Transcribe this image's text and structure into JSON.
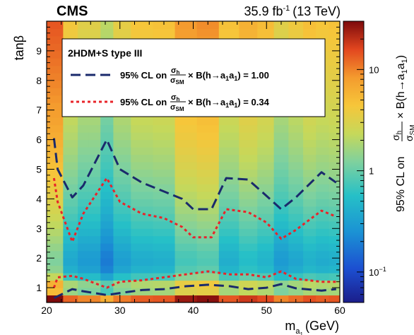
{
  "chart_data": {
    "type": "heatmap",
    "experiment": "CMS",
    "lumi_label": "35.9 fb",
    "lumi_sup": "-1",
    "lumi_energy": "(13 TeV)",
    "xlabel_main": "m",
    "xlabel_sub": "a",
    "xlabel_sub2": "1",
    "xlabel_unit": "(GeV)",
    "ylabel": "tanβ",
    "xlim": [
      20,
      60
    ],
    "ylim": [
      0.5,
      10
    ],
    "x_ticks": [
      "20",
      "30",
      "40",
      "50",
      "60"
    ],
    "y_ticks": [
      "1",
      "2",
      "3",
      "4",
      "5",
      "6",
      "7",
      "8",
      "9"
    ],
    "z_scale": "log",
    "zlim": [
      0.05,
      30
    ],
    "z_ticks": [
      "10",
      "1",
      "10"
    ],
    "z_tick_sup": [
      "",
      "",
      "−1"
    ],
    "zlabel_prefix": "95% CL on",
    "zlabel_num": "σ",
    "zlabel_num_sub": "h",
    "zlabel_den": "σ",
    "zlabel_den_sub": "SM",
    "zlabel_suffix": "× B(h→a",
    "zlabel_a_sub": "1",
    "zlabel_a2": "a",
    "zlabel_end": ")",
    "legend": {
      "title": "2HDM+S type III",
      "entries": [
        {
          "text_pre": "95% CL on",
          "num": "σ",
          "num_sub": "h",
          "den": "σ",
          "den_sub": "SM",
          "text_post": "× B(h→a",
          "sub1": "1",
          "mid": "a",
          "sub2": "1",
          "end": ") = 1.00",
          "color": "#1a2a6c",
          "style": "dashed"
        },
        {
          "text_pre": "95% CL on",
          "num": "σ",
          "num_sub": "h",
          "den": "σ",
          "den_sub": "SM",
          "text_post": "× B(h→a",
          "sub1": "1",
          "mid": "a",
          "sub2": "1",
          "end": ") = 0.34",
          "color": "#e8242a",
          "style": "dotted"
        }
      ]
    },
    "mass_bins": [
      21,
      23.5,
      25,
      26.5,
      28.2,
      30,
      33,
      36,
      39,
      42,
      45,
      47.5,
      50,
      52,
      54,
      56,
      57.5,
      59.5
    ],
    "column_scale": [
      3.0,
      0.9,
      0.7,
      0.7,
      0.45,
      0.75,
      0.95,
      1.0,
      1.8,
      2.0,
      1.0,
      1.3,
      1.1,
      0.7,
      0.85,
      1.05,
      0.95,
      1.0
    ],
    "series": [
      {
        "name": "1.00",
        "color": "#1a2a6c",
        "upper": [
          [
            21,
            6.05
          ],
          [
            21.5,
            5.0
          ],
          [
            23.5,
            4.05
          ],
          [
            25,
            4.45
          ],
          [
            28.2,
            6.0
          ],
          [
            30,
            5.0
          ],
          [
            33,
            4.55
          ],
          [
            36,
            4.25
          ],
          [
            38.5,
            4.0
          ],
          [
            40,
            3.65
          ],
          [
            42.5,
            3.65
          ],
          [
            44.5,
            4.7
          ],
          [
            47.5,
            4.65
          ],
          [
            50,
            4.1
          ],
          [
            52,
            3.65
          ],
          [
            54,
            4.05
          ],
          [
            57.5,
            4.9
          ],
          [
            59.5,
            4.55
          ]
        ],
        "lower": [
          [
            21,
            0.65
          ],
          [
            23.5,
            0.95
          ],
          [
            25,
            0.88
          ],
          [
            28.2,
            0.75
          ],
          [
            30,
            0.82
          ],
          [
            33,
            0.92
          ],
          [
            36,
            0.95
          ],
          [
            39,
            1.05
          ],
          [
            42,
            1.1
          ],
          [
            45,
            1.05
          ],
          [
            47.5,
            0.95
          ],
          [
            50,
            1.0
          ],
          [
            52,
            1.12
          ],
          [
            54,
            0.98
          ],
          [
            57.5,
            0.9
          ],
          [
            59.5,
            0.95
          ]
        ]
      },
      {
        "name": "0.34",
        "color": "#e8242a",
        "upper": [
          [
            21,
            4.7
          ],
          [
            21.5,
            3.9
          ],
          [
            23.5,
            2.55
          ],
          [
            25,
            3.5
          ],
          [
            28.2,
            4.7
          ],
          [
            30,
            3.9
          ],
          [
            33,
            3.5
          ],
          [
            36,
            3.35
          ],
          [
            38.5,
            3.05
          ],
          [
            40,
            2.7
          ],
          [
            42.5,
            2.7
          ],
          [
            44.5,
            3.65
          ],
          [
            47.5,
            3.55
          ],
          [
            50,
            3.2
          ],
          [
            52,
            2.65
          ],
          [
            54,
            2.95
          ],
          [
            57.5,
            3.6
          ],
          [
            59.5,
            3.4
          ]
        ],
        "lower": [
          [
            21,
            1.0
          ],
          [
            21.5,
            1.35
          ],
          [
            23.5,
            1.4
          ],
          [
            25,
            1.3
          ],
          [
            28.2,
            1.0
          ],
          [
            30,
            1.2
          ],
          [
            33,
            1.25
          ],
          [
            36,
            1.35
          ],
          [
            39,
            1.45
          ],
          [
            42,
            1.55
          ],
          [
            45,
            1.45
          ],
          [
            47.5,
            1.45
          ],
          [
            50,
            1.35
          ],
          [
            52,
            1.55
          ],
          [
            54,
            1.3
          ],
          [
            57.5,
            1.2
          ],
          [
            59.5,
            1.2
          ]
        ]
      }
    ]
  }
}
